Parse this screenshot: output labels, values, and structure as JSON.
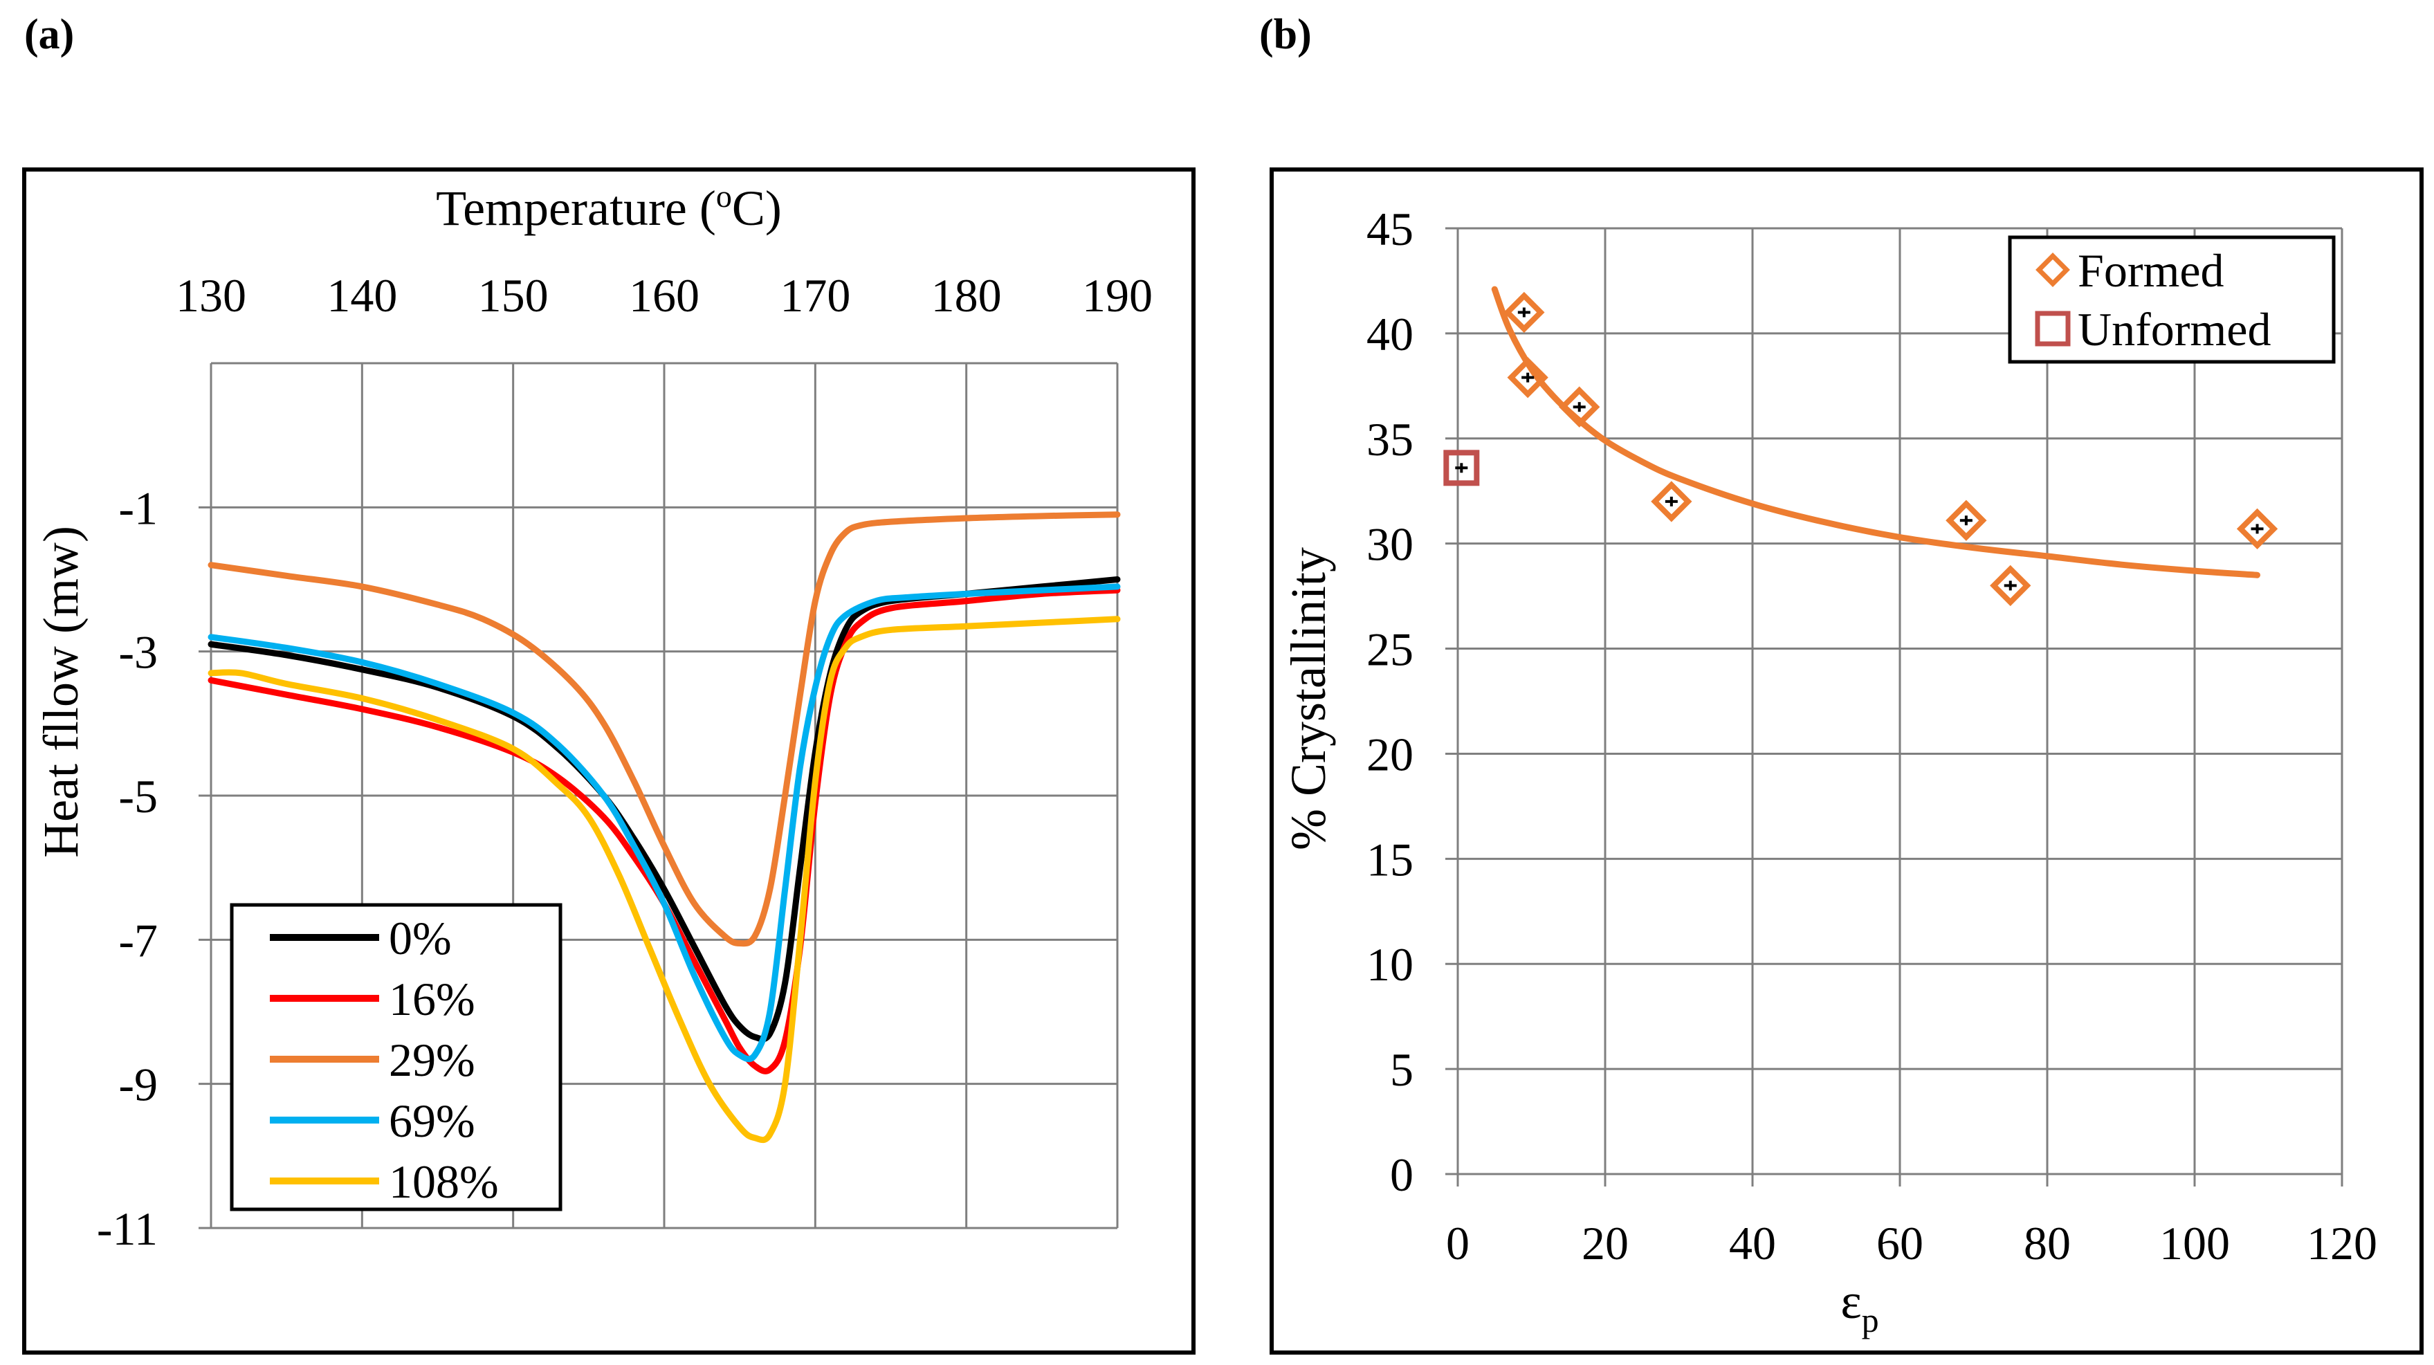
{
  "figure": {
    "panel_a_label": "(a)",
    "panel_b_label": "(b)"
  },
  "colors": {
    "black": "#000000",
    "red": "#ff0000",
    "orange": "#ed7d31",
    "blue": "#00b0f0",
    "gold": "#ffc000",
    "formed": "#ed7d31",
    "unformed": "#c0504d",
    "grid": "#7f7f7f",
    "frame": "#000000"
  },
  "chart_data": [
    {
      "id": "a",
      "type": "line",
      "title": "",
      "xlabel": "Temperature (oC)",
      "xlabel_main": "Temperature (",
      "xlabel_sup": "o",
      "xlabel_end": "C)",
      "ylabel": "Heat fllow (mw)",
      "xlim": [
        130,
        190
      ],
      "ylim": [
        -11,
        1
      ],
      "xticks": [
        130,
        140,
        150,
        160,
        170,
        180,
        190
      ],
      "yticks": [
        -1,
        -3,
        -5,
        -7,
        -9,
        -11
      ],
      "x_axis_position": "top",
      "grid": true,
      "legend_position": "bottom-left",
      "series": [
        {
          "name": "0%",
          "color": "#000000",
          "x": [
            130,
            135,
            140,
            145,
            150,
            153,
            156,
            158,
            160,
            162,
            164,
            165,
            166,
            167,
            168,
            169,
            170,
            171,
            172,
            173,
            175,
            180,
            185,
            190
          ],
          "y": [
            -2.9,
            -3.05,
            -3.25,
            -3.5,
            -3.9,
            -4.35,
            -5.0,
            -5.6,
            -6.3,
            -7.1,
            -7.9,
            -8.2,
            -8.35,
            -8.3,
            -7.6,
            -6.0,
            -4.4,
            -3.3,
            -2.7,
            -2.45,
            -2.3,
            -2.2,
            -2.1,
            -2.0
          ]
        },
        {
          "name": "16%",
          "color": "#ff0000",
          "x": [
            130,
            135,
            140,
            145,
            150,
            153,
            156,
            158,
            160,
            162,
            164,
            165,
            166,
            167,
            168,
            169,
            170,
            171,
            172,
            173,
            175,
            180,
            185,
            190
          ],
          "y": [
            -3.4,
            -3.6,
            -3.8,
            -4.05,
            -4.4,
            -4.75,
            -5.3,
            -5.85,
            -6.5,
            -7.3,
            -8.1,
            -8.5,
            -8.75,
            -8.8,
            -8.4,
            -7.1,
            -5.1,
            -3.6,
            -2.9,
            -2.6,
            -2.4,
            -2.3,
            -2.2,
            -2.15
          ]
        },
        {
          "name": "29%",
          "color": "#ed7d31",
          "x": [
            130,
            135,
            140,
            145,
            148,
            151,
            154,
            156,
            158,
            160,
            162,
            164,
            165,
            166,
            167,
            168,
            169,
            170,
            171,
            172,
            173,
            175,
            180,
            185,
            190
          ],
          "y": [
            -1.8,
            -1.95,
            -2.1,
            -2.35,
            -2.55,
            -2.9,
            -3.45,
            -4.0,
            -4.8,
            -5.7,
            -6.5,
            -6.95,
            -7.05,
            -6.95,
            -6.3,
            -5.0,
            -3.6,
            -2.3,
            -1.65,
            -1.35,
            -1.25,
            -1.2,
            -1.15,
            -1.12,
            -1.1
          ]
        },
        {
          "name": "69%",
          "color": "#00b0f0",
          "x": [
            130,
            135,
            140,
            145,
            150,
            153,
            156,
            158,
            160,
            162,
            164,
            165,
            166,
            167,
            168,
            169,
            170,
            171,
            172,
            174,
            176,
            180,
            185,
            190
          ],
          "y": [
            -2.8,
            -2.95,
            -3.15,
            -3.45,
            -3.85,
            -4.3,
            -5.0,
            -5.7,
            -6.5,
            -7.5,
            -8.35,
            -8.6,
            -8.6,
            -8.0,
            -6.3,
            -4.6,
            -3.5,
            -2.8,
            -2.5,
            -2.3,
            -2.25,
            -2.2,
            -2.15,
            -2.1
          ]
        },
        {
          "name": "108%",
          "color": "#ffc000",
          "x": [
            130,
            132,
            135,
            140,
            145,
            150,
            153,
            155,
            157,
            159,
            161,
            163,
            165,
            166,
            167,
            168,
            169,
            170,
            171,
            172,
            173,
            175,
            180,
            185,
            190
          ],
          "y": [
            -3.3,
            -3.3,
            -3.45,
            -3.65,
            -3.95,
            -4.35,
            -4.85,
            -5.3,
            -6.1,
            -7.1,
            -8.1,
            -9.0,
            -9.6,
            -9.75,
            -9.7,
            -9.0,
            -7.0,
            -4.8,
            -3.4,
            -2.95,
            -2.8,
            -2.7,
            -2.65,
            -2.6,
            -2.55
          ]
        }
      ]
    },
    {
      "id": "b",
      "type": "scatter",
      "title": "",
      "xlabel": "εp",
      "xlabel_main": "ε",
      "xlabel_sub": "p",
      "ylabel": "% Crystallinity",
      "xlim": [
        0,
        120
      ],
      "ylim": [
        0,
        45
      ],
      "xticks": [
        0,
        20,
        40,
        60,
        80,
        100,
        120
      ],
      "yticks": [
        0,
        5,
        10,
        15,
        20,
        25,
        30,
        35,
        40,
        45
      ],
      "grid": true,
      "legend_position": "top-right",
      "series": [
        {
          "name": "Formed",
          "marker": "diamond",
          "color": "#ed7d31",
          "x": [
            9,
            9.5,
            16.5,
            29,
            69,
            75,
            108.5
          ],
          "y": [
            41,
            37.9,
            36.5,
            32,
            31.1,
            28,
            30.7
          ]
        },
        {
          "name": "Unformed",
          "marker": "square",
          "color": "#c0504d",
          "x": [
            0.5
          ],
          "y": [
            33.6
          ]
        }
      ],
      "trendline": {
        "type": "power",
        "color": "#ed7d31",
        "x": [
          5,
          7,
          10,
          13,
          16,
          20,
          25,
          30,
          40,
          50,
          60,
          70,
          80,
          90,
          100,
          108.5
        ],
        "y": [
          42.1,
          40.2,
          38.3,
          37.0,
          36.0,
          34.9,
          33.9,
          33.1,
          31.9,
          31.0,
          30.3,
          29.8,
          29.4,
          29.0,
          28.7,
          28.5
        ]
      }
    }
  ]
}
